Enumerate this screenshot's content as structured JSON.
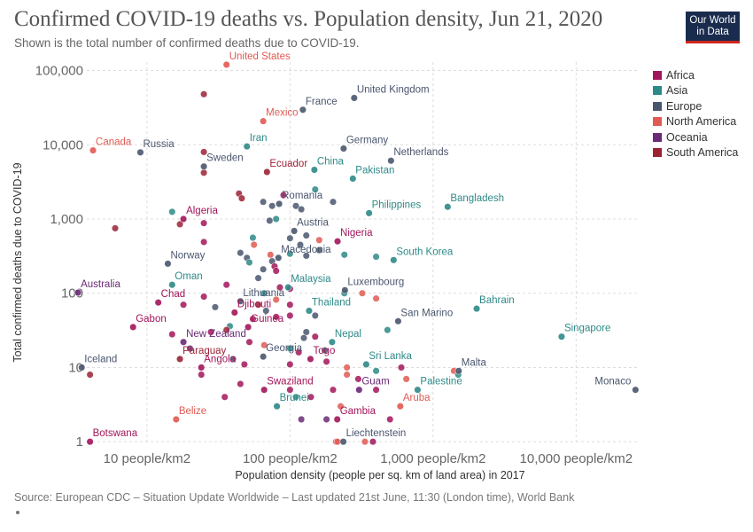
{
  "header": {
    "title": "Confirmed COVID-19 deaths vs. Population density, Jun 21, 2020",
    "subtitle": "Shown is the total number of confirmed deaths due to COVID-19.",
    "logo_line1": "Our World",
    "logo_line2": "in Data"
  },
  "footer": {
    "source": "Source: European CDC – Situation Update Worldwide – Last updated 21st June, 11:30 (London time), World Bank"
  },
  "colors": {
    "Africa": "#a2155a",
    "Asia": "#2d8a87",
    "Europe": "#4a566e",
    "North America": "#e05a52",
    "Oceania": "#6a2a77",
    "South America": "#9b2235"
  },
  "chart_data": {
    "type": "scatter",
    "x_scale": "log",
    "y_scale": "log",
    "xlabel": "Population density (people per sq. km of land area) in 2017",
    "ylabel": "Total confirmed deaths due to COVID-19",
    "x_ticks": [
      {
        "value": 10,
        "label": "10 people/km2"
      },
      {
        "value": 100,
        "label": "100 people/km2"
      },
      {
        "value": 1000,
        "label": "1,000 people/km2"
      },
      {
        "value": 10000,
        "label": "10,000 people/km2"
      }
    ],
    "y_ticks": [
      {
        "value": 1,
        "label": "1"
      },
      {
        "value": 10,
        "label": "10"
      },
      {
        "value": 100,
        "label": "100"
      },
      {
        "value": 1000,
        "label": "1,000"
      },
      {
        "value": 10000,
        "label": "10,000"
      },
      {
        "value": 100000,
        "label": "100,000"
      }
    ],
    "xlim": [
      3.8,
      27000
    ],
    "ylim": [
      0.9,
      130000
    ],
    "grid": true,
    "legend": [
      "Africa",
      "Asia",
      "Europe",
      "North America",
      "Oceania",
      "South America"
    ],
    "legend_position": "right",
    "labeled_points": [
      {
        "label": "United States",
        "x": 36,
        "y": 120000,
        "region": "North America"
      },
      {
        "label": "United Kingdom",
        "x": 281,
        "y": 42700,
        "region": "Europe"
      },
      {
        "label": "France",
        "x": 123,
        "y": 29600,
        "region": "Europe"
      },
      {
        "label": "Mexico",
        "x": 65,
        "y": 20800,
        "region": "North America"
      },
      {
        "label": "Canada",
        "x": 4.2,
        "y": 8400,
        "region": "North America"
      },
      {
        "label": "Russia",
        "x": 9,
        "y": 7900,
        "region": "Europe"
      },
      {
        "label": "Iran",
        "x": 50,
        "y": 9500,
        "region": "Asia"
      },
      {
        "label": "Germany",
        "x": 237,
        "y": 8900,
        "region": "Europe"
      },
      {
        "label": "Netherlands",
        "x": 508,
        "y": 6100,
        "region": "Europe"
      },
      {
        "label": "Sweden",
        "x": 25,
        "y": 5100,
        "region": "Europe"
      },
      {
        "label": "Ecuador",
        "x": 69,
        "y": 4300,
        "region": "South America"
      },
      {
        "label": "China",
        "x": 148,
        "y": 4600,
        "region": "Asia"
      },
      {
        "label": "Pakistan",
        "x": 275,
        "y": 3500,
        "region": "Asia"
      },
      {
        "label": "Romania",
        "x": 84,
        "y": 1600,
        "region": "Europe"
      },
      {
        "label": "Bangladesh",
        "x": 1265,
        "y": 1460,
        "region": "Asia"
      },
      {
        "label": "Philippines",
        "x": 357,
        "y": 1200,
        "region": "Asia"
      },
      {
        "label": "Algeria",
        "x": 18,
        "y": 1000,
        "region": "Africa"
      },
      {
        "label": "Austria",
        "x": 107,
        "y": 690,
        "region": "Europe"
      },
      {
        "label": "Nigeria",
        "x": 215,
        "y": 500,
        "region": "Africa"
      },
      {
        "label": "South Korea",
        "x": 530,
        "y": 280,
        "region": "Asia"
      },
      {
        "label": "Norway",
        "x": 14,
        "y": 250,
        "region": "Europe"
      },
      {
        "label": "Macedonia",
        "x": 83,
        "y": 300,
        "region": "Europe"
      },
      {
        "label": "Australia",
        "x": 3.3,
        "y": 102,
        "region": "Oceania"
      },
      {
        "label": "Oman",
        "x": 15,
        "y": 130,
        "region": "Asia"
      },
      {
        "label": "Luxembourg",
        "x": 242,
        "y": 110,
        "region": "Europe"
      },
      {
        "label": "Malaysia",
        "x": 97,
        "y": 120,
        "region": "Asia"
      },
      {
        "label": "Chad",
        "x": 12,
        "y": 75,
        "region": "Africa"
      },
      {
        "label": "Lithuania",
        "x": 45,
        "y": 78,
        "region": "Europe"
      },
      {
        "label": "Bahrain",
        "x": 2017,
        "y": 62,
        "region": "Asia"
      },
      {
        "label": "Thailand",
        "x": 136,
        "y": 58,
        "region": "Asia"
      },
      {
        "label": "Djibouti",
        "x": 41,
        "y": 55,
        "region": "Africa"
      },
      {
        "label": "San Marino",
        "x": 570,
        "y": 42,
        "region": "Europe"
      },
      {
        "label": "Gabon",
        "x": 8,
        "y": 35,
        "region": "Africa"
      },
      {
        "label": "Guinea",
        "x": 51,
        "y": 35,
        "region": "Africa"
      },
      {
        "label": "Singapore",
        "x": 7916,
        "y": 26,
        "region": "Asia"
      },
      {
        "label": "New Zealand",
        "x": 18,
        "y": 22,
        "region": "Oceania"
      },
      {
        "label": "Nepal",
        "x": 197,
        "y": 22,
        "region": "Asia"
      },
      {
        "label": "Paraguay",
        "x": 17,
        "y": 13,
        "region": "South America"
      },
      {
        "label": "Georgia",
        "x": 65,
        "y": 14,
        "region": "Europe"
      },
      {
        "label": "Togo",
        "x": 139,
        "y": 13,
        "region": "Africa"
      },
      {
        "label": "Sri Lanka",
        "x": 341,
        "y": 11,
        "region": "Asia"
      },
      {
        "label": "Iceland",
        "x": 3.5,
        "y": 10,
        "region": "Europe"
      },
      {
        "label": "Angola",
        "x": 24,
        "y": 10,
        "region": "Africa"
      },
      {
        "label": "Malta",
        "x": 1511,
        "y": 9,
        "region": "Europe"
      },
      {
        "label": "Swaziland",
        "x": 66,
        "y": 5,
        "region": "Africa"
      },
      {
        "label": "Guam",
        "x": 304,
        "y": 5,
        "region": "Oceania"
      },
      {
        "label": "Palestine",
        "x": 780,
        "y": 5,
        "region": "Asia"
      },
      {
        "label": "Monaco",
        "x": 26000,
        "y": 5,
        "region": "Europe"
      },
      {
        "label": "Brunei",
        "x": 81,
        "y": 3,
        "region": "Asia"
      },
      {
        "label": "Aruba",
        "x": 590,
        "y": 3,
        "region": "North America"
      },
      {
        "label": "Belize",
        "x": 16,
        "y": 2,
        "region": "North America"
      },
      {
        "label": "Gambia",
        "x": 214,
        "y": 2,
        "region": "Africa"
      },
      {
        "label": "Botswana",
        "x": 4,
        "y": 1,
        "region": "Africa"
      },
      {
        "label": "Liechtenstein",
        "x": 236,
        "y": 1,
        "region": "Europe"
      }
    ],
    "unlabeled_points": [
      {
        "x": 25,
        "y": 48000,
        "region": "South America"
      },
      {
        "x": 25,
        "y": 8000,
        "region": "South America"
      },
      {
        "x": 25,
        "y": 4200,
        "region": "South America"
      },
      {
        "x": 44,
        "y": 2200,
        "region": "South America"
      },
      {
        "x": 46,
        "y": 1900,
        "region": "South America"
      },
      {
        "x": 90,
        "y": 2100,
        "region": "Africa"
      },
      {
        "x": 150,
        "y": 2500,
        "region": "Asia"
      },
      {
        "x": 110,
        "y": 1500,
        "region": "Europe"
      },
      {
        "x": 120,
        "y": 1350,
        "region": "Europe"
      },
      {
        "x": 75,
        "y": 1500,
        "region": "Europe"
      },
      {
        "x": 65,
        "y": 1700,
        "region": "Europe"
      },
      {
        "x": 200,
        "y": 1700,
        "region": "Europe"
      },
      {
        "x": 80,
        "y": 1000,
        "region": "Asia"
      },
      {
        "x": 72,
        "y": 950,
        "region": "Europe"
      },
      {
        "x": 15,
        "y": 1250,
        "region": "Asia"
      },
      {
        "x": 17,
        "y": 850,
        "region": "South America"
      },
      {
        "x": 6,
        "y": 750,
        "region": "South America"
      },
      {
        "x": 25,
        "y": 880,
        "region": "Africa"
      },
      {
        "x": 25,
        "y": 490,
        "region": "Africa"
      },
      {
        "x": 100,
        "y": 550,
        "region": "Europe"
      },
      {
        "x": 130,
        "y": 600,
        "region": "Europe"
      },
      {
        "x": 160,
        "y": 520,
        "region": "North America"
      },
      {
        "x": 55,
        "y": 560,
        "region": "Asia"
      },
      {
        "x": 56,
        "y": 450,
        "region": "North America"
      },
      {
        "x": 73,
        "y": 330,
        "region": "North America"
      },
      {
        "x": 118,
        "y": 450,
        "region": "Europe"
      },
      {
        "x": 160,
        "y": 380,
        "region": "Europe"
      },
      {
        "x": 45,
        "y": 350,
        "region": "Europe"
      },
      {
        "x": 50,
        "y": 300,
        "region": "Europe"
      },
      {
        "x": 52,
        "y": 260,
        "region": "Asia"
      },
      {
        "x": 75,
        "y": 270,
        "region": "Europe"
      },
      {
        "x": 78,
        "y": 230,
        "region": "Africa"
      },
      {
        "x": 80,
        "y": 200,
        "region": "Africa"
      },
      {
        "x": 65,
        "y": 210,
        "region": "Europe"
      },
      {
        "x": 100,
        "y": 340,
        "region": "Asia"
      },
      {
        "x": 130,
        "y": 320,
        "region": "Europe"
      },
      {
        "x": 240,
        "y": 330,
        "region": "Asia"
      },
      {
        "x": 400,
        "y": 310,
        "region": "Asia"
      },
      {
        "x": 60,
        "y": 160,
        "region": "Europe"
      },
      {
        "x": 36,
        "y": 130,
        "region": "Africa"
      },
      {
        "x": 85,
        "y": 120,
        "region": "Africa"
      },
      {
        "x": 100,
        "y": 115,
        "region": "Africa"
      },
      {
        "x": 66,
        "y": 100,
        "region": "Asia"
      },
      {
        "x": 25,
        "y": 90,
        "region": "Africa"
      },
      {
        "x": 18,
        "y": 70,
        "region": "Africa"
      },
      {
        "x": 60,
        "y": 70,
        "region": "South America"
      },
      {
        "x": 68,
        "y": 58,
        "region": "Europe"
      },
      {
        "x": 100,
        "y": 70,
        "region": "Africa"
      },
      {
        "x": 150,
        "y": 50,
        "region": "Europe"
      },
      {
        "x": 30,
        "y": 65,
        "region": "Europe"
      },
      {
        "x": 80,
        "y": 48,
        "region": "Africa"
      },
      {
        "x": 100,
        "y": 50,
        "region": "Africa"
      },
      {
        "x": 80,
        "y": 82,
        "region": "North America"
      },
      {
        "x": 240,
        "y": 100,
        "region": "Asia"
      },
      {
        "x": 320,
        "y": 100,
        "region": "North America"
      },
      {
        "x": 400,
        "y": 85,
        "region": "North America"
      },
      {
        "x": 55,
        "y": 45,
        "region": "Africa"
      },
      {
        "x": 38,
        "y": 36,
        "region": "Asia"
      },
      {
        "x": 15,
        "y": 28,
        "region": "Africa"
      },
      {
        "x": 28,
        "y": 30,
        "region": "Africa"
      },
      {
        "x": 36,
        "y": 32,
        "region": "South America"
      },
      {
        "x": 130,
        "y": 30,
        "region": "Europe"
      },
      {
        "x": 125,
        "y": 25,
        "region": "Europe"
      },
      {
        "x": 150,
        "y": 26,
        "region": "Africa"
      },
      {
        "x": 480,
        "y": 32,
        "region": "Asia"
      },
      {
        "x": 20,
        "y": 18,
        "region": "Oceania"
      },
      {
        "x": 52,
        "y": 22,
        "region": "Africa"
      },
      {
        "x": 66,
        "y": 20,
        "region": "North America"
      },
      {
        "x": 100,
        "y": 18,
        "region": "Asia"
      },
      {
        "x": 115,
        "y": 16,
        "region": "Africa"
      },
      {
        "x": 175,
        "y": 17,
        "region": "Europe"
      },
      {
        "x": 40,
        "y": 13,
        "region": "Europe"
      },
      {
        "x": 48,
        "y": 11,
        "region": "Africa"
      },
      {
        "x": 100,
        "y": 11,
        "region": "Africa"
      },
      {
        "x": 180,
        "y": 12,
        "region": "Africa"
      },
      {
        "x": 250,
        "y": 10,
        "region": "North America"
      },
      {
        "x": 600,
        "y": 10,
        "region": "Africa"
      },
      {
        "x": 1400,
        "y": 9,
        "region": "North America"
      },
      {
        "x": 1500,
        "y": 8,
        "region": "Asia"
      },
      {
        "x": 4,
        "y": 8,
        "region": "South America"
      },
      {
        "x": 24,
        "y": 8,
        "region": "Africa"
      },
      {
        "x": 45,
        "y": 6,
        "region": "Africa"
      },
      {
        "x": 250,
        "y": 8,
        "region": "North America"
      },
      {
        "x": 300,
        "y": 7,
        "region": "Africa"
      },
      {
        "x": 400,
        "y": 9,
        "region": "Asia"
      },
      {
        "x": 650,
        "y": 7,
        "region": "North America"
      },
      {
        "x": 35,
        "y": 4,
        "region": "Africa"
      },
      {
        "x": 100,
        "y": 5,
        "region": "Africa"
      },
      {
        "x": 200,
        "y": 5,
        "region": "Africa"
      },
      {
        "x": 400,
        "y": 5,
        "region": "Africa"
      },
      {
        "x": 110,
        "y": 4,
        "region": "Asia"
      },
      {
        "x": 140,
        "y": 4,
        "region": "Africa"
      },
      {
        "x": 226,
        "y": 3,
        "region": "North America"
      },
      {
        "x": 120,
        "y": 2,
        "region": "Oceania"
      },
      {
        "x": 180,
        "y": 2,
        "region": "Oceania"
      },
      {
        "x": 500,
        "y": 2,
        "region": "Africa"
      },
      {
        "x": 210,
        "y": 1,
        "region": "North America"
      },
      {
        "x": 215,
        "y": 1,
        "region": "North America"
      },
      {
        "x": 334,
        "y": 1,
        "region": "North America"
      },
      {
        "x": 380,
        "y": 1,
        "region": "Africa"
      }
    ]
  }
}
